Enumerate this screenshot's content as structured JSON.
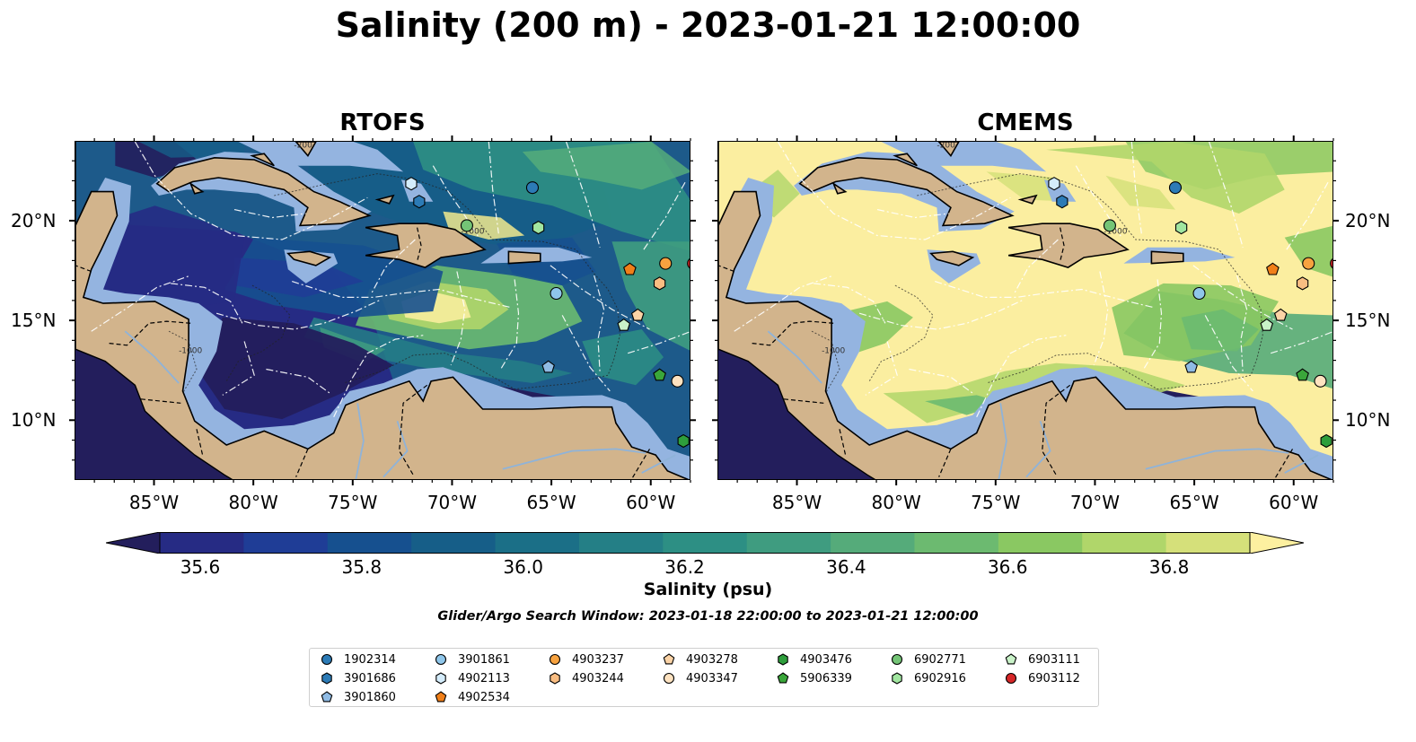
{
  "suptitle": "Salinity (200 m) - 2023-01-21 12:00:00",
  "panels": [
    {
      "title": "RTOFS",
      "style": "rtofs"
    },
    {
      "title": "CMEMS",
      "style": "cmems"
    }
  ],
  "lon_ticks": [
    "85°W",
    "80°W",
    "75°W",
    "70°W",
    "65°W",
    "60°W"
  ],
  "lat_ticks": [
    "20°N",
    "15°N",
    "10°N"
  ],
  "map_extent": {
    "lon": [
      -89,
      -58
    ],
    "lat": [
      7,
      24
    ]
  },
  "contour_labels": [
    "-1000",
    "-1000",
    "-200"
  ],
  "colorbar": {
    "label": "Salinity (psu)",
    "tick_labels": [
      "35.6",
      "35.8",
      "36.0",
      "36.2",
      "36.4",
      "36.6",
      "36.8"
    ],
    "tick_values": [
      35.6,
      35.8,
      36.0,
      36.2,
      36.4,
      36.6,
      36.8
    ],
    "range": [
      35.55,
      36.9
    ],
    "extend": "both",
    "colors": [
      "#231e5c",
      "#262b84",
      "#1f3d96",
      "#16508f",
      "#165e88",
      "#1b6f87",
      "#247f86",
      "#2d8f84",
      "#3f9c80",
      "#55ab7a",
      "#6cba70",
      "#8ac862",
      "#b0d66a",
      "#d5e07a",
      "#fdf0a0"
    ]
  },
  "search_window": "Glider/Argo Search Window: 2023-01-18 22:00:00 to 2023-01-21 12:00:00",
  "colors": {
    "land": "#d2b48c",
    "shallow": "#94b4e0",
    "deep": "#231e5c",
    "rtofs_mid": "#1d5a8a",
    "cmems_mid": "#fbeea0"
  },
  "floats": [
    {
      "id": "1902314",
      "marker": "circle",
      "color": "#2c7bb6",
      "lon": -66.0,
      "lat": 21.7
    },
    {
      "id": "3901686",
      "marker": "hexagon",
      "color": "#2c7bb6",
      "lon": -71.7,
      "lat": 21.0
    },
    {
      "id": "3901860",
      "marker": "pentagon",
      "color": "#8fbbe4",
      "lon": -65.2,
      "lat": 12.7
    },
    {
      "id": "3901861",
      "marker": "circle",
      "color": "#8fc6ea",
      "lon": -64.8,
      "lat": 16.4
    },
    {
      "id": "4902113",
      "marker": "hexagon",
      "color": "#d4ecfb",
      "lon": -72.1,
      "lat": 21.9
    },
    {
      "id": "4902534",
      "marker": "pentagon",
      "color": "#f07f19",
      "lon": -61.1,
      "lat": 17.6
    },
    {
      "id": "4903237",
      "marker": "circle",
      "color": "#f7a23f",
      "lon": -59.3,
      "lat": 17.9
    },
    {
      "id": "4903244",
      "marker": "hexagon",
      "color": "#f9bd82",
      "lon": -59.6,
      "lat": 16.9
    },
    {
      "id": "4903278",
      "marker": "pentagon",
      "color": "#fbd3a6",
      "lon": -60.7,
      "lat": 15.3
    },
    {
      "id": "4903347",
      "marker": "circle",
      "color": "#fde2c0",
      "lon": -58.7,
      "lat": 12.0
    },
    {
      "id": "4903476",
      "marker": "hexagon",
      "color": "#2e9e3c",
      "lon": -58.4,
      "lat": 9.0
    },
    {
      "id": "5906339",
      "marker": "pentagon",
      "color": "#3aa63a",
      "lon": -59.6,
      "lat": 12.3
    },
    {
      "id": "6902771",
      "marker": "circle",
      "color": "#74c476",
      "lon": -69.3,
      "lat": 19.8
    },
    {
      "id": "6902916",
      "marker": "hexagon",
      "color": "#a1e6a0",
      "lon": -65.7,
      "lat": 19.7
    },
    {
      "id": "6903111",
      "marker": "pentagon",
      "color": "#c9f2c8",
      "lon": -61.4,
      "lat": 14.8
    },
    {
      "id": "6903112",
      "marker": "circle",
      "color": "#d62728",
      "lon": -57.9,
      "lat": 17.9
    }
  ],
  "legend": [
    [
      "1902314",
      "3901686",
      "3901860"
    ],
    [
      "3901861",
      "4902113",
      "4902534"
    ],
    [
      "4903237",
      "4903244"
    ],
    [
      "4903278",
      "4903347"
    ],
    [
      "4903476",
      "5906339"
    ],
    [
      "6902771",
      "6902916"
    ],
    [
      "6903111",
      "6903112"
    ]
  ]
}
